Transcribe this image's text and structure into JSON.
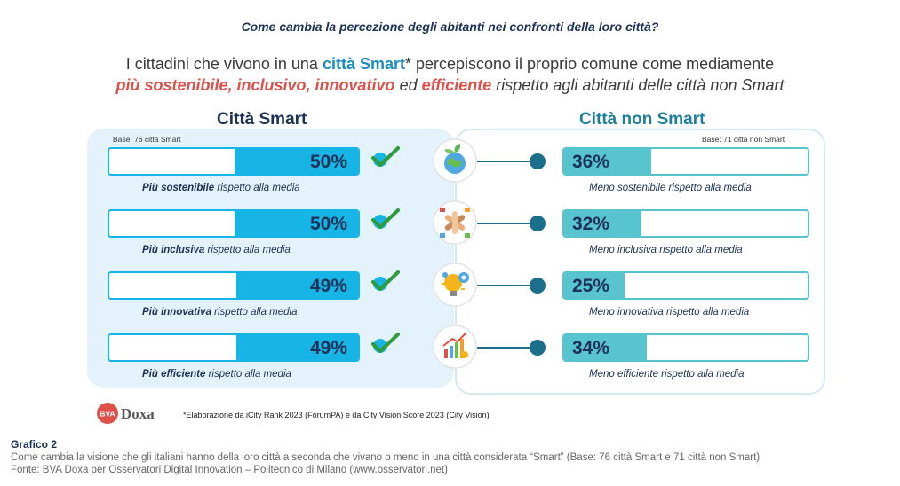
{
  "header": {
    "question": "Come cambia la percezione degli abitanti nei confronti della loro città?",
    "subtitle_p1": "I cittadini che vivono in una ",
    "subtitle_bold": "città Smart",
    "subtitle_p2": "* percepiscono il proprio comune come mediamente",
    "subtitle_red1": "più sostenibile, inclusivo, innovativo",
    "subtitle_p3": " ed ",
    "subtitle_red2": "efficiente",
    "subtitle_p4": " rispetto agli abitanti delle città non Smart"
  },
  "colors": {
    "smart_fill": "#17b4e6",
    "non_smart_fill": "#58c4cf",
    "dark": "#1b3156",
    "check": "#2e9c3a",
    "accent_red": "#e0504a"
  },
  "chart_data": {
    "type": "bar",
    "title": "Come cambia la percezione degli abitanti nei confronti della loro città?",
    "ylim": [
      0,
      100
    ],
    "categories": [
      "sostenibile",
      "inclusiva",
      "innovativa",
      "efficiente"
    ],
    "series": [
      {
        "name": "Città Smart",
        "base": "Base: 76 città Smart",
        "values": [
          50,
          50,
          49,
          49
        ]
      },
      {
        "name": "Città non Smart",
        "base": "Base: 71 città non Smart",
        "values": [
          36,
          32,
          25,
          34
        ]
      }
    ]
  },
  "rows": [
    {
      "icon": "globe-plant-icon",
      "smart_label": "50%",
      "smart_bold": "Più sostenibile",
      "smart_rest": " rispetto alla media",
      "non_label": "36%",
      "non_caption": "Meno sostenibile rispetto alla media"
    },
    {
      "icon": "joined-hands-icon",
      "smart_label": "50%",
      "smart_bold": "Più inclusiva",
      "smart_rest": " rispetto alla media",
      "non_label": "32%",
      "non_caption": "Meno inclusiva rispetto alla media"
    },
    {
      "icon": "lightbulb-gear-icon",
      "smart_label": "49%",
      "smart_bold": "Più innovativa",
      "smart_rest": " rispetto alla media",
      "non_label": "25%",
      "non_caption": "Meno innovativa rispetto alla media"
    },
    {
      "icon": "growth-chart-icon",
      "smart_label": "49%",
      "smart_bold": "Più efficiente",
      "smart_rest": " rispetto alla media",
      "non_label": "34%",
      "non_caption": "Meno efficiente rispetto alla media"
    }
  ],
  "columns": {
    "smart_title": "Città Smart",
    "non_title": "Città non Smart",
    "smart_base": "Base: 76 città Smart",
    "non_base": "Base: 71 città non Smart"
  },
  "logo": {
    "bva": "BVA",
    "doxa": "Doxa"
  },
  "footnote": "*Elaborazione da iCity Rank 2023 (ForumPA) e da City Vision Score 2023 (City Vision)",
  "footer": {
    "label": "Grafico 2",
    "line1": "Come cambia la visione che gli italiani hanno della loro città a seconda che vivano o meno in una città considerata “Smart” (Base: 76 città Smart e 71 città non Smart)",
    "line2": "Fonte: BVA Doxa per Osservatori Digital Innovation – Politecnico di Milano (www.osservatori.net)"
  }
}
